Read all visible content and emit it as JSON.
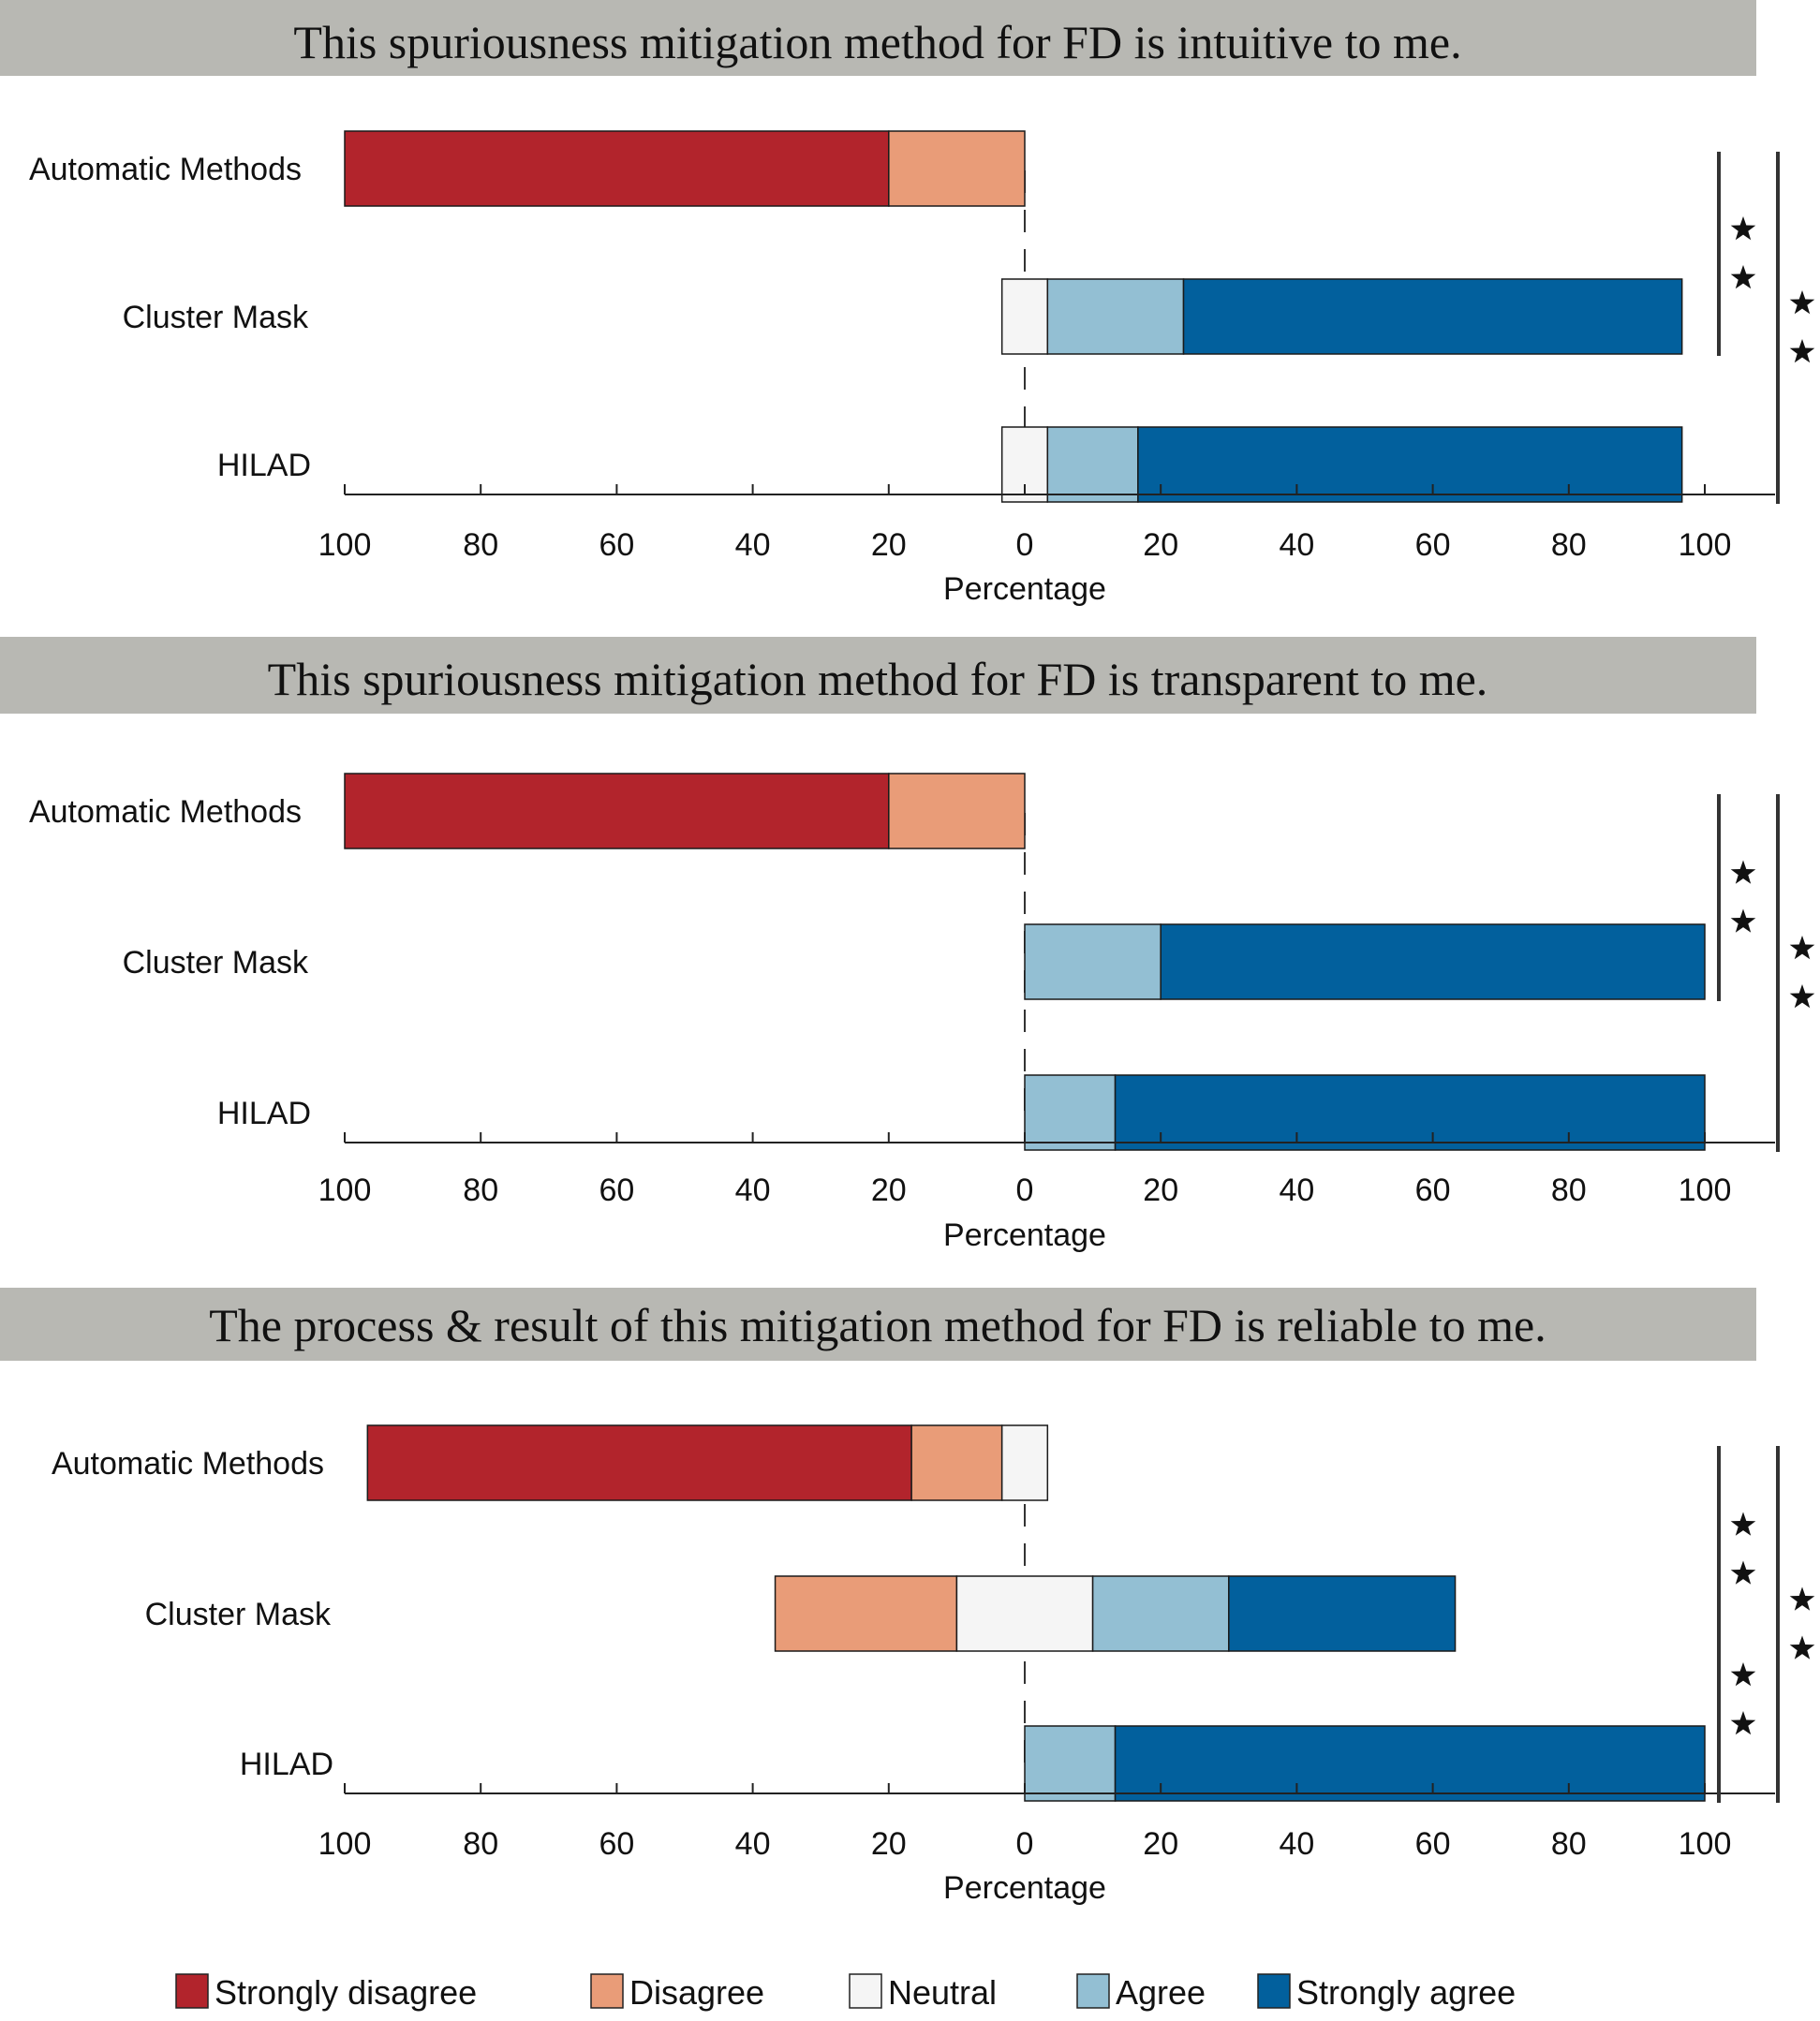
{
  "colors": {
    "title_bg": "#b8b8b3",
    "strongly_disagree": "#b2242c",
    "disagree": "#e99c78",
    "neutral": "#f5f5f5",
    "agree": "#93bfd3",
    "strongly_agree": "#02609d",
    "axis": "#222222",
    "significance_bar": "#333333"
  },
  "legend": [
    {
      "key": "strongly_disagree",
      "label": "Strongly disagree",
      "icon": "square-swatch"
    },
    {
      "key": "disagree",
      "label": "Disagree",
      "icon": "square-swatch"
    },
    {
      "key": "neutral",
      "label": "Neutral",
      "icon": "square-swatch"
    },
    {
      "key": "agree",
      "label": "Agree",
      "icon": "square-swatch"
    },
    {
      "key": "strongly_agree",
      "label": "Strongly agree",
      "icon": "square-swatch"
    }
  ],
  "chart_data": [
    {
      "type": "bar",
      "orientation": "horizontal-diverging",
      "title": "This spuriousness mitigation method for FD is intuitive to me.",
      "xlabel": "Percentage",
      "xlim": [
        -100,
        100
      ],
      "tick_values": [
        -100,
        -80,
        -60,
        -40,
        -20,
        0,
        20,
        40,
        60,
        80,
        100
      ],
      "tick_labels": [
        "100",
        "80",
        "60",
        "40",
        "20",
        "0",
        "20",
        "40",
        "60",
        "80",
        "100"
      ],
      "categories": [
        "Automatic Methods",
        "Cluster Mask",
        "HILAD"
      ],
      "series": [
        {
          "name": "Strongly disagree",
          "key": "strongly_disagree",
          "values": [
            80,
            0,
            0
          ]
        },
        {
          "name": "Disagree",
          "key": "disagree",
          "values": [
            20,
            0,
            0
          ]
        },
        {
          "name": "Neutral",
          "key": "neutral",
          "values": [
            0,
            6.7,
            6.7
          ]
        },
        {
          "name": "Agree",
          "key": "agree",
          "values": [
            0,
            20,
            13.3
          ]
        },
        {
          "name": "Strongly agree",
          "key": "strongly_agree",
          "values": [
            0,
            73.3,
            80
          ]
        }
      ],
      "significance": [
        {
          "from": "Automatic Methods",
          "to": "Cluster Mask",
          "marker": "★★"
        },
        {
          "from": "Automatic Methods",
          "to": "HILAD",
          "marker": "★★"
        }
      ]
    },
    {
      "type": "bar",
      "orientation": "horizontal-diverging",
      "title": "This spuriousness mitigation method for FD is transparent to me.",
      "xlabel": "Percentage",
      "xlim": [
        -100,
        100
      ],
      "tick_values": [
        -100,
        -80,
        -60,
        -40,
        -20,
        0,
        20,
        40,
        60,
        80,
        100
      ],
      "tick_labels": [
        "100",
        "80",
        "60",
        "40",
        "20",
        "0",
        "20",
        "40",
        "60",
        "80",
        "100"
      ],
      "categories": [
        "Automatic Methods",
        "Cluster Mask",
        "HILAD"
      ],
      "series": [
        {
          "name": "Strongly disagree",
          "key": "strongly_disagree",
          "values": [
            80,
            0,
            0
          ]
        },
        {
          "name": "Disagree",
          "key": "disagree",
          "values": [
            20,
            0,
            0
          ]
        },
        {
          "name": "Neutral",
          "key": "neutral",
          "values": [
            0,
            0,
            0
          ]
        },
        {
          "name": "Agree",
          "key": "agree",
          "values": [
            0,
            20,
            13.3
          ]
        },
        {
          "name": "Strongly agree",
          "key": "strongly_agree",
          "values": [
            0,
            80,
            86.7
          ]
        }
      ],
      "significance": [
        {
          "from": "Automatic Methods",
          "to": "Cluster Mask",
          "marker": "★★"
        },
        {
          "from": "Automatic Methods",
          "to": "HILAD",
          "marker": "★★"
        }
      ]
    },
    {
      "type": "bar",
      "orientation": "horizontal-diverging",
      "title": "The process & result of this mitigation method for FD is reliable to me.",
      "xlabel": "Percentage",
      "xlim": [
        -100,
        100
      ],
      "tick_values": [
        -100,
        -80,
        -60,
        -40,
        -20,
        0,
        20,
        40,
        60,
        80,
        100
      ],
      "tick_labels": [
        "100",
        "80",
        "60",
        "40",
        "20",
        "0",
        "20",
        "40",
        "60",
        "80",
        "100"
      ],
      "categories": [
        "Automatic Methods",
        "Cluster Mask",
        "HILAD"
      ],
      "series": [
        {
          "name": "Strongly disagree",
          "key": "strongly_disagree",
          "values": [
            80,
            0,
            0
          ]
        },
        {
          "name": "Disagree",
          "key": "disagree",
          "values": [
            13.3,
            26.7,
            0
          ]
        },
        {
          "name": "Neutral",
          "key": "neutral",
          "values": [
            6.7,
            20,
            0
          ]
        },
        {
          "name": "Agree",
          "key": "agree",
          "values": [
            0,
            20,
            13.3
          ]
        },
        {
          "name": "Strongly agree",
          "key": "strongly_agree",
          "values": [
            0,
            33.3,
            86.7
          ]
        }
      ],
      "significance": [
        {
          "from": "Automatic Methods",
          "to": "Cluster Mask",
          "marker": "★★"
        },
        {
          "from": "Cluster Mask",
          "to": "HILAD",
          "marker": "★★"
        },
        {
          "from": "Automatic Methods",
          "to": "HILAD",
          "marker": "★★"
        }
      ]
    }
  ]
}
